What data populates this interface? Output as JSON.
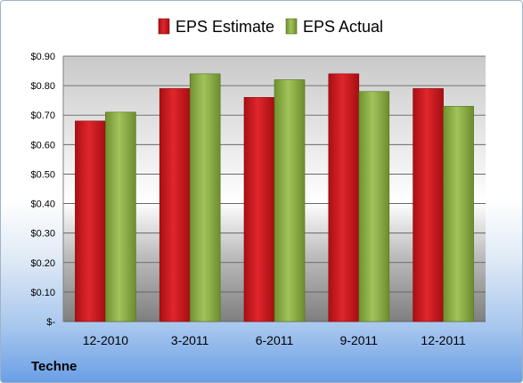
{
  "company": "Techne",
  "colors": {
    "estimate": "#c8161c",
    "actual": "#8cb043",
    "grid": "#555555"
  },
  "chart_data": {
    "type": "bar",
    "categories": [
      "12-2010",
      "3-2011",
      "6-2011",
      "9-2011",
      "12-2011"
    ],
    "series": [
      {
        "name": "EPS Estimate",
        "values": [
          0.68,
          0.79,
          0.76,
          0.84,
          0.79
        ]
      },
      {
        "name": "EPS Actual",
        "values": [
          0.71,
          0.84,
          0.82,
          0.78,
          0.73
        ]
      }
    ],
    "y_ticks": [
      "$-",
      "$0.10",
      "$0.20",
      "$0.30",
      "$0.40",
      "$0.50",
      "$0.60",
      "$0.70",
      "$0.80",
      "$0.90"
    ],
    "ylim": [
      0,
      0.9
    ],
    "grid": true,
    "legend_position": "top",
    "title": "",
    "xlabel": "",
    "ylabel": ""
  }
}
